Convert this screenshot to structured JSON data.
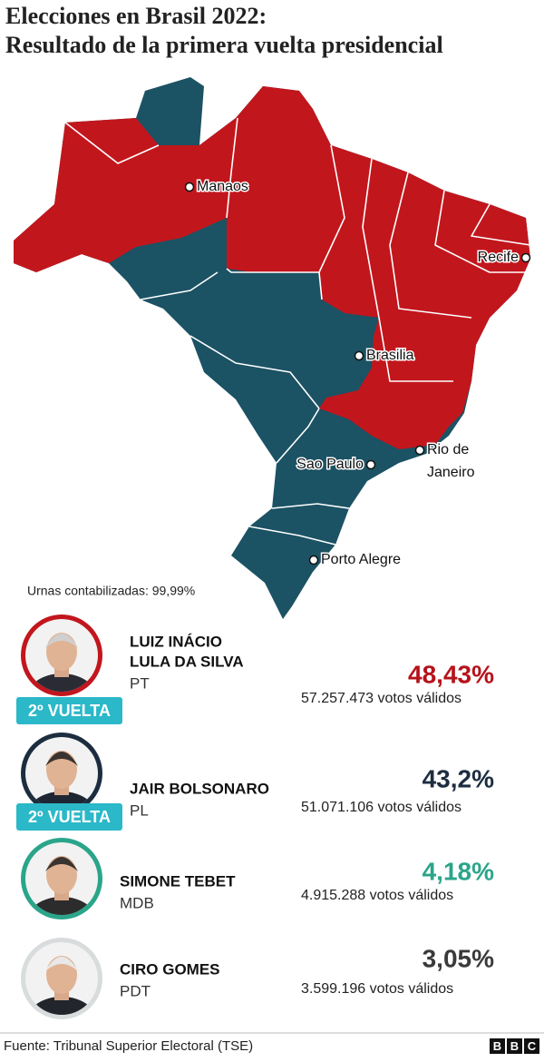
{
  "header": {
    "title_lines": [
      "Elecciones en Brasil 2022:",
      "Resultado de la primera vuelta presidencial"
    ]
  },
  "map": {
    "cities": [
      {
        "lines": [
          "Manaos"
        ]
      },
      {
        "lines": [
          "Recife"
        ]
      },
      {
        "lines": [
          "Brasilia"
        ]
      },
      {
        "lines": [
          "Rio de",
          "Janeiro"
        ]
      },
      {
        "lines": [
          "Sao Paulo"
        ]
      },
      {
        "lines": [
          "Porto Alegre"
        ]
      }
    ]
  },
  "note": "Urnas contabilizadas: 99,99%",
  "candidates": [
    {
      "name_lines": [
        "LUIZ INÁCIO",
        "LULA DA SILVA"
      ],
      "party": "PT",
      "percent": "48,43%",
      "votes": "57.257.473 votos válidos",
      "badge": "2º VUELTA"
    },
    {
      "name_lines": [
        "JAIR BOLSONARO"
      ],
      "party": "PL",
      "percent": "43,2%",
      "votes": "51.071.106 votos válidos",
      "badge": "2º VUELTA"
    },
    {
      "name_lines": [
        "SIMONE TEBET"
      ],
      "party": "MDB",
      "percent": "4,18%",
      "votes": "4.915.288 votos válidos"
    },
    {
      "name_lines": [
        "CIRO GOMES"
      ],
      "party": "PDT",
      "percent": "3,05%",
      "votes": "3.599.196 votos válidos"
    }
  ],
  "footer": {
    "source": "Fuente: Tribunal Superior Electoral (TSE)",
    "logo_letters": [
      "B",
      "B",
      "C"
    ]
  }
}
